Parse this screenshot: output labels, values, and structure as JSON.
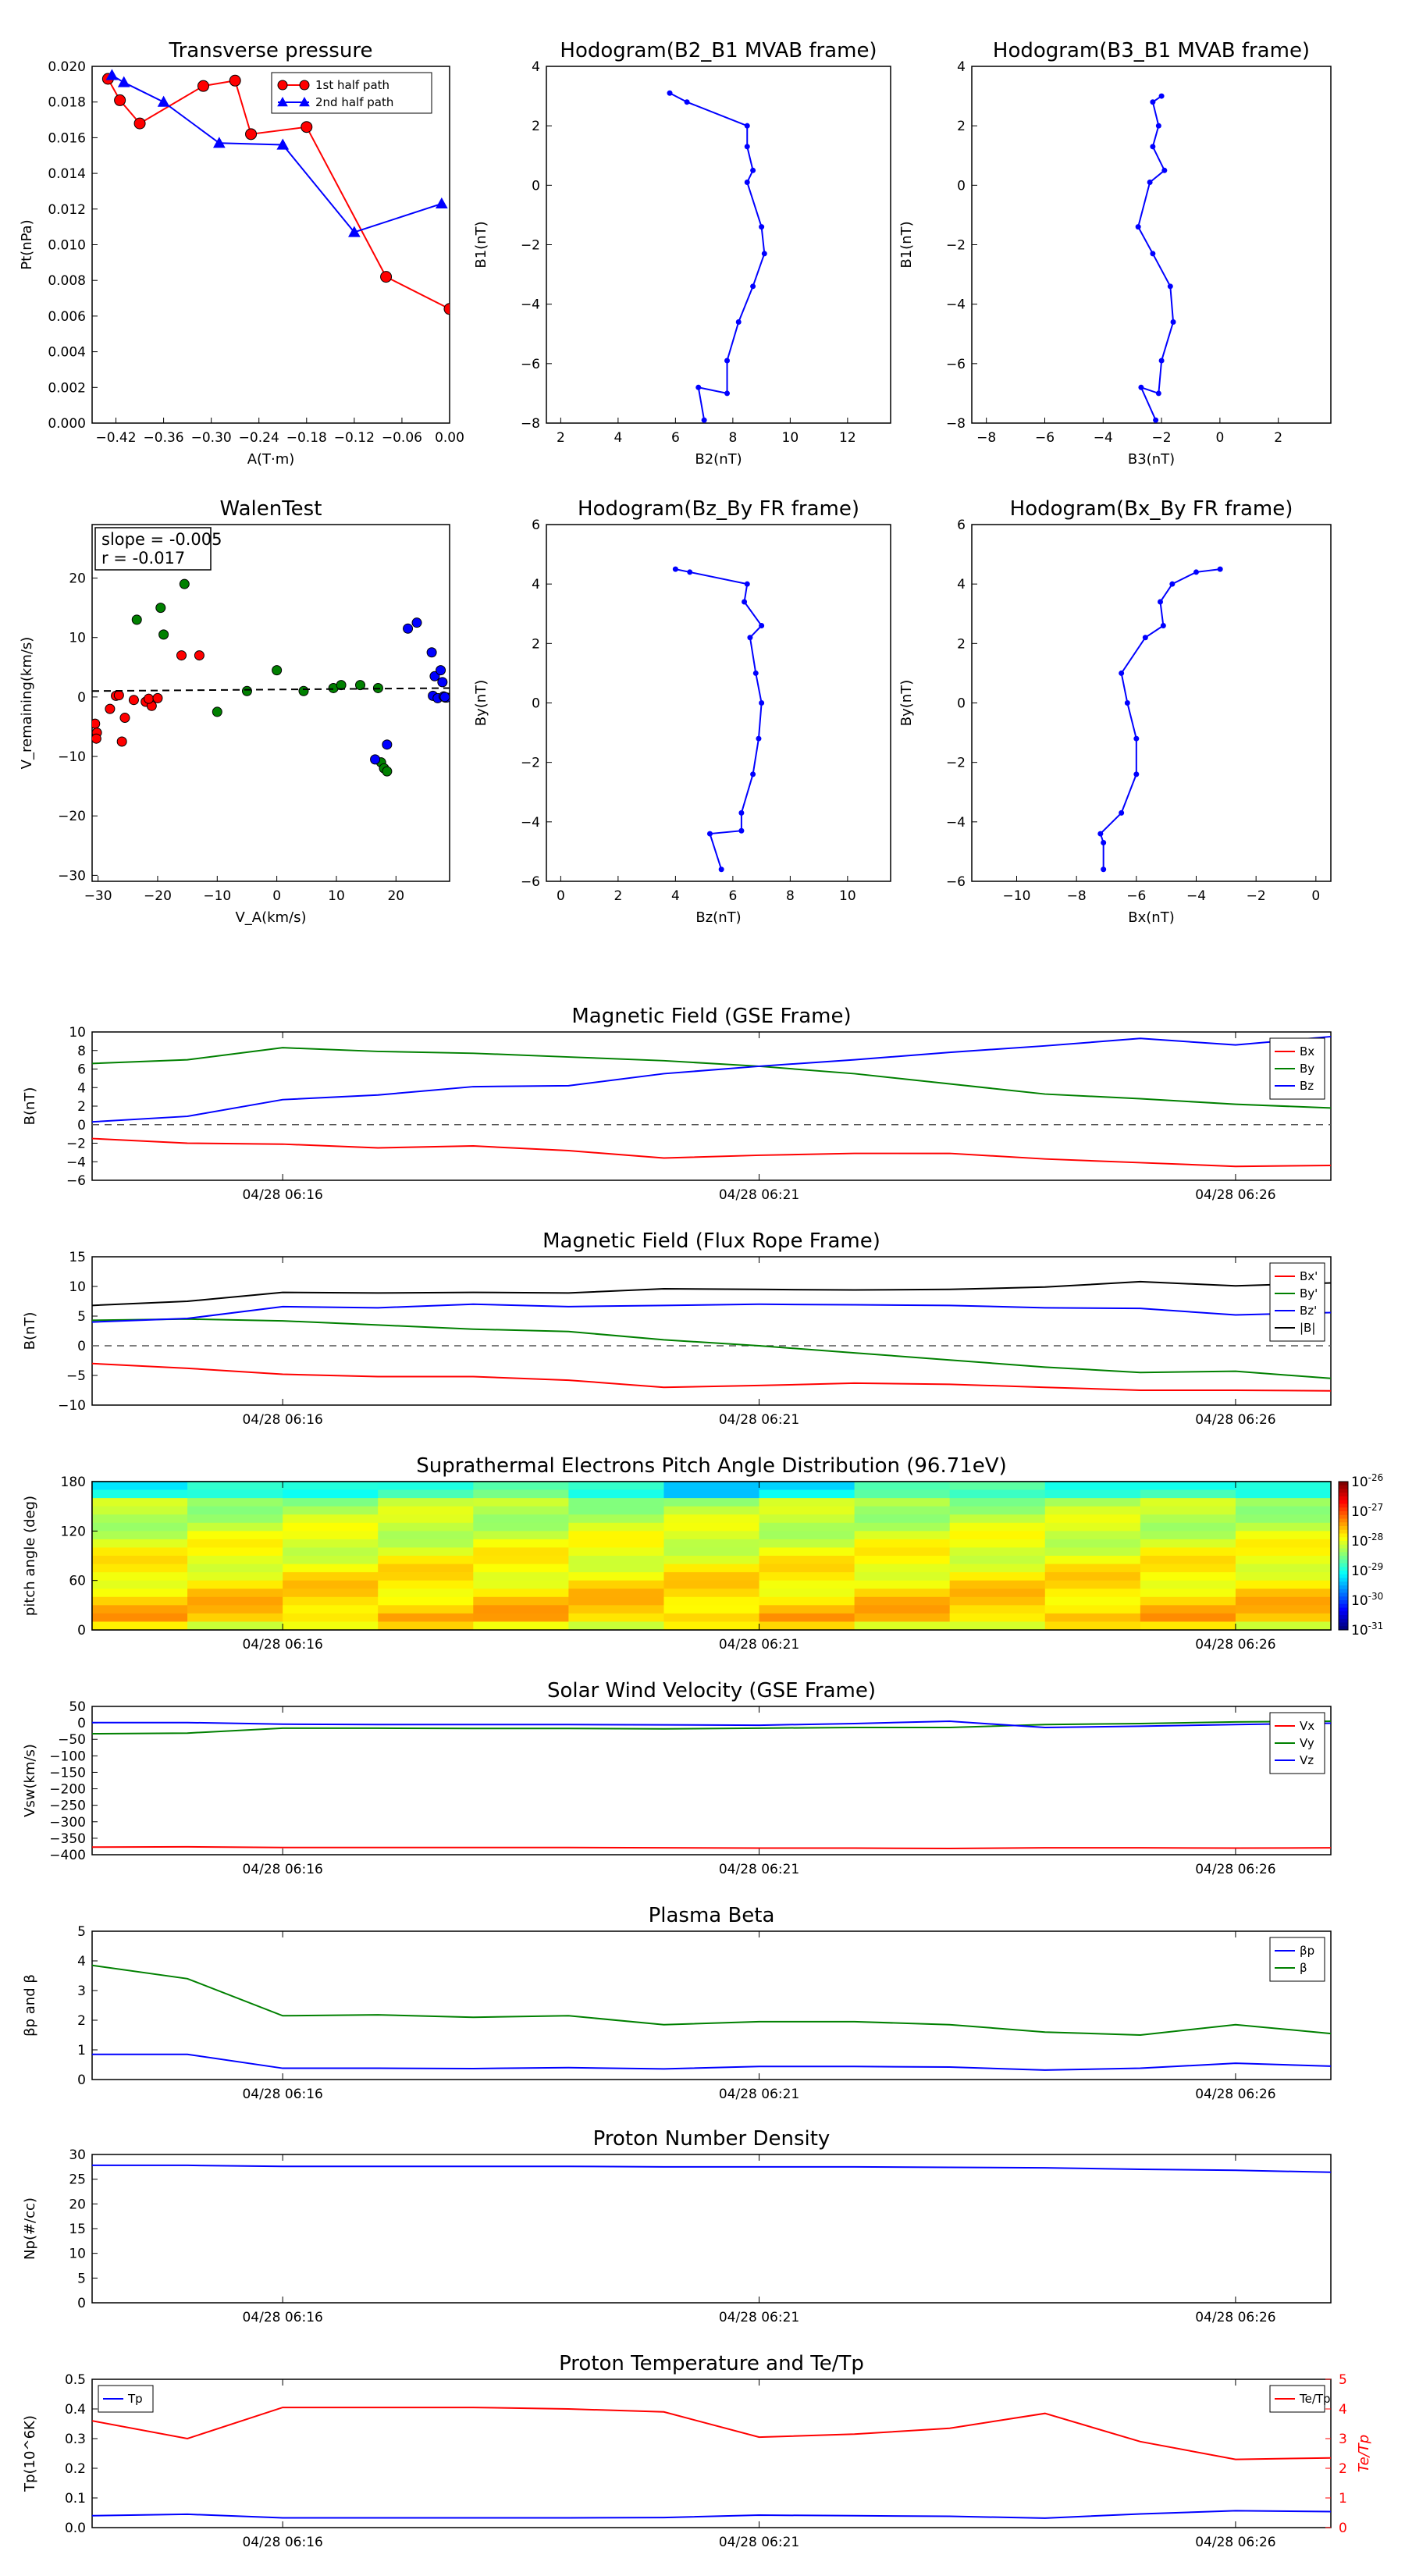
{
  "colors": {
    "red": "#ff0000",
    "green": "#008000",
    "blue": "#0000ff",
    "black": "#000000",
    "gray": "#555555"
  },
  "chart_data": [
    {
      "id": "tp",
      "type": "line",
      "title": "Transverse pressure",
      "xlabel": "A(T·m)",
      "ylabel": "Pt(nPa)",
      "xlim": [
        -0.45,
        0.0
      ],
      "ylim": [
        0,
        0.02
      ],
      "xticks": [
        -0.42,
        -0.36,
        -0.3,
        -0.24,
        -0.18,
        -0.12,
        -0.06,
        0.0
      ],
      "xtick_labels": [
        "−0.42",
        "−0.36",
        "−0.30",
        "−0.24",
        "−0.18",
        "−0.12",
        "−0.06",
        "0.00"
      ],
      "yticks": [
        0,
        0.002,
        0.004,
        0.006,
        0.008,
        0.01,
        0.012,
        0.014,
        0.016,
        0.018,
        0.02
      ],
      "ytick_labels": [
        "0.000",
        "0.002",
        "0.004",
        "0.006",
        "0.008",
        "0.010",
        "0.012",
        "0.014",
        "0.016",
        "0.018",
        "0.020"
      ],
      "legend": "top-center",
      "series": [
        {
          "name": "1st half path",
          "color": "#ff0000",
          "marker": "circle",
          "x": [
            -0.43,
            -0.415,
            -0.39,
            -0.31,
            -0.27,
            -0.25,
            -0.18,
            -0.08,
            0.0
          ],
          "y": [
            0.0193,
            0.0181,
            0.0168,
            0.0189,
            0.0192,
            0.0162,
            0.0166,
            0.0082,
            0.0064
          ]
        },
        {
          "name": "2nd half path",
          "color": "#0000ff",
          "marker": "triangle",
          "x": [
            -0.425,
            -0.41,
            -0.36,
            -0.29,
            -0.21,
            -0.12,
            -0.01
          ],
          "y": [
            0.0195,
            0.0191,
            0.018,
            0.0157,
            0.0156,
            0.0107,
            0.0123
          ]
        }
      ]
    },
    {
      "id": "hodo1",
      "type": "line",
      "title": "Hodogram(B2_B1 MVAB frame)",
      "xlabel": "B2(nT)",
      "ylabel": "B1(nT)",
      "xlim": [
        1.5,
        13.5
      ],
      "ylim": [
        -8,
        4
      ],
      "xticks": [
        2,
        4,
        6,
        8,
        10,
        12
      ],
      "xtick_labels": [
        "2",
        "4",
        "6",
        "8",
        "10",
        "12"
      ],
      "yticks": [
        -8,
        -6,
        -4,
        -2,
        0,
        2,
        4
      ],
      "ytick_labels": [
        "−8",
        "−6",
        "−4",
        "−2",
        "0",
        "2",
        "4"
      ],
      "series": [
        {
          "name": "",
          "color": "#0000ff",
          "marker": "dot",
          "x": [
            5.8,
            6.4,
            8.5,
            8.5,
            8.7,
            8.5,
            9.0,
            9.1,
            8.7,
            8.2,
            7.8,
            7.8,
            6.8,
            7.0
          ],
          "y": [
            3.1,
            2.8,
            2.0,
            1.3,
            0.5,
            0.1,
            -1.4,
            -2.3,
            -3.4,
            -4.6,
            -5.9,
            -7.0,
            -6.8,
            -7.9
          ]
        }
      ]
    },
    {
      "id": "hodo2",
      "type": "line",
      "title": "Hodogram(B3_B1 MVAB frame)",
      "xlabel": "B3(nT)",
      "ylabel": "B1(nT)",
      "xlim": [
        -8.5,
        3.8
      ],
      "ylim": [
        -8,
        4
      ],
      "xticks": [
        -8,
        -6,
        -4,
        -2,
        0,
        2
      ],
      "xtick_labels": [
        "−8",
        "−6",
        "−4",
        "−2",
        "0",
        "2"
      ],
      "yticks": [
        -8,
        -6,
        -4,
        -2,
        0,
        2,
        4
      ],
      "ytick_labels": [
        "−8",
        "−6",
        "−4",
        "−2",
        "0",
        "2",
        "4"
      ],
      "series": [
        {
          "name": "",
          "color": "#0000ff",
          "marker": "dot",
          "x": [
            -2.0,
            -2.3,
            -2.1,
            -2.3,
            -1.9,
            -2.4,
            -2.8,
            -2.3,
            -1.7,
            -1.6,
            -2.0,
            -2.1,
            -2.7,
            -2.2
          ],
          "y": [
            3.0,
            2.8,
            2.0,
            1.3,
            0.5,
            0.1,
            -1.4,
            -2.3,
            -3.4,
            -4.6,
            -5.9,
            -7.0,
            -6.8,
            -7.9
          ]
        }
      ]
    },
    {
      "id": "walen",
      "type": "scatter",
      "title": "WalenTest",
      "xlabel": "V_A(km/s)",
      "ylabel": "V_remaining(km/s)",
      "xlim": [
        -31,
        29
      ],
      "ylim": [
        -31,
        29
      ],
      "xticks": [
        -30,
        -20,
        -10,
        0,
        10,
        20
      ],
      "xtick_labels": [
        "−30",
        "−20",
        "−10",
        "0",
        "10",
        "20"
      ],
      "yticks": [
        -30,
        -20,
        -10,
        0,
        10,
        20
      ],
      "ytick_labels": [
        "−30",
        "−20",
        "−10",
        "0",
        "10",
        "20"
      ],
      "annotation": [
        "slope = -0.005",
        "r = -0.017"
      ],
      "fit_line": [
        [
          -31,
          1.0
        ],
        [
          29,
          1.5
        ]
      ],
      "series": [
        {
          "name": "",
          "color": "#ff0000",
          "x": [
            -30.5,
            -30.2,
            -30.3,
            -28,
            -27,
            -26.5,
            -25.5,
            -26,
            -24,
            -22,
            -21,
            -21.5,
            -20,
            -16,
            -13
          ],
          "y": [
            -4.5,
            -6,
            -7,
            -2,
            0.2,
            0.3,
            -3.5,
            -7.5,
            -0.5,
            -0.8,
            -1.5,
            -0.3,
            -0.2,
            7,
            7
          ]
        },
        {
          "name": "",
          "color": "#008000",
          "x": [
            -23.5,
            -19.5,
            -19,
            -15.5,
            -10,
            -5,
            0,
            4.5,
            9.5,
            10.8,
            14,
            17,
            17.5,
            18,
            18.5
          ],
          "y": [
            13,
            15,
            10.5,
            19,
            -2.5,
            1,
            4.5,
            1,
            1.5,
            2,
            2,
            1.5,
            -11,
            -12,
            -12.5
          ]
        },
        {
          "name": "",
          "color": "#0000ff",
          "x": [
            16.5,
            18.5,
            22,
            23.5,
            26,
            26.5,
            26.2,
            27,
            27.5,
            27.8,
            28,
            28.3,
            28.5,
            28.2
          ],
          "y": [
            -10.5,
            -8,
            11.5,
            12.5,
            7.5,
            3.5,
            0.2,
            -0.2,
            4.5,
            2.5,
            0.1,
            -0.1,
            -0.1,
            0
          ]
        }
      ]
    },
    {
      "id": "hodo3",
      "type": "line",
      "title": "Hodogram(Bz_By FR frame)",
      "xlabel": "Bz(nT)",
      "ylabel": "By(nT)",
      "xlim": [
        -0.5,
        11.5
      ],
      "ylim": [
        -6,
        6
      ],
      "xticks": [
        0,
        2,
        4,
        6,
        8,
        10
      ],
      "xtick_labels": [
        "0",
        "2",
        "4",
        "6",
        "8",
        "10"
      ],
      "yticks": [
        -6,
        -4,
        -2,
        0,
        2,
        4,
        6
      ],
      "ytick_labels": [
        "−6",
        "−4",
        "−2",
        "0",
        "2",
        "4",
        "6"
      ],
      "series": [
        {
          "name": "",
          "color": "#0000ff",
          "marker": "dot",
          "x": [
            4.0,
            4.5,
            6.5,
            6.4,
            7.0,
            6.6,
            6.8,
            7.0,
            6.9,
            6.7,
            6.3,
            6.3,
            5.2,
            5.6
          ],
          "y": [
            4.5,
            4.4,
            4.0,
            3.4,
            2.6,
            2.2,
            1.0,
            0.0,
            -1.2,
            -2.4,
            -3.7,
            -4.3,
            -4.4,
            -5.6
          ]
        }
      ]
    },
    {
      "id": "hodo4",
      "type": "line",
      "title": "Hodogram(Bx_By FR frame)",
      "xlabel": "Bx(nT)",
      "ylabel": "By(nT)",
      "xlim": [
        -11.5,
        0.5
      ],
      "ylim": [
        -6,
        6
      ],
      "xticks": [
        -10,
        -8,
        -6,
        -4,
        -2,
        0
      ],
      "xtick_labels": [
        "−10",
        "−8",
        "−6",
        "−4",
        "−2",
        "0"
      ],
      "yticks": [
        -6,
        -4,
        -2,
        0,
        2,
        4,
        6
      ],
      "ytick_labels": [
        "−6",
        "−4",
        "−2",
        "0",
        "2",
        "4",
        "6"
      ],
      "series": [
        {
          "name": "",
          "color": "#0000ff",
          "marker": "dot",
          "x": [
            -3.2,
            -4.0,
            -4.8,
            -5.2,
            -5.1,
            -5.7,
            -6.5,
            -6.3,
            -6.0,
            -6.0,
            -6.5,
            -7.2,
            -7.1,
            -7.1
          ],
          "y": [
            4.5,
            4.4,
            4.0,
            3.4,
            2.6,
            2.2,
            1.0,
            0.0,
            -1.2,
            -2.4,
            -3.7,
            -4.4,
            -4.7,
            -5.6
          ]
        }
      ]
    },
    {
      "id": "bgse",
      "type": "line",
      "title": "Magnetic Field (GSE Frame)",
      "ylabel": "B(nT)",
      "ylim": [
        -6,
        10
      ],
      "yticks": [
        -6,
        -4,
        -2,
        0,
        2,
        4,
        6,
        8,
        10
      ],
      "ytick_labels": [
        "−6",
        "−4",
        "−2",
        "0",
        "2",
        "4",
        "6",
        "8",
        "10"
      ],
      "legend": "top-right",
      "zero_line": true,
      "series": [
        {
          "name": "Bx",
          "color": "#ff0000",
          "y": [
            -1.5,
            -2.0,
            -2.1,
            -2.5,
            -2.3,
            -2.8,
            -3.6,
            -3.3,
            -3.1,
            -3.1,
            -3.7,
            -4.1,
            -4.5,
            -4.4
          ]
        },
        {
          "name": "By",
          "color": "#008000",
          "y": [
            6.6,
            7.0,
            8.3,
            7.9,
            7.7,
            7.3,
            6.9,
            6.3,
            5.5,
            4.4,
            3.3,
            2.8,
            2.2,
            1.8
          ]
        },
        {
          "name": "Bz",
          "color": "#0000ff",
          "y": [
            0.3,
            0.9,
            2.7,
            3.2,
            4.1,
            4.2,
            5.5,
            6.3,
            7.0,
            7.8,
            8.5,
            9.3,
            8.6,
            9.5
          ]
        }
      ]
    },
    {
      "id": "bfr",
      "type": "line",
      "title": "Magnetic Field (Flux Rope Frame)",
      "ylabel": "B(nT)",
      "ylim": [
        -10,
        15
      ],
      "yticks": [
        -10,
        -5,
        0,
        5,
        10,
        15
      ],
      "ytick_labels": [
        "−10",
        "−5",
        "0",
        "5",
        "10",
        "15"
      ],
      "legend": "top-right",
      "zero_line": true,
      "series": [
        {
          "name": "Bx'",
          "color": "#ff0000",
          "y": [
            -3.0,
            -3.8,
            -4.8,
            -5.2,
            -5.2,
            -5.8,
            -7.0,
            -6.7,
            -6.3,
            -6.5,
            -7.0,
            -7.5,
            -7.5,
            -7.6
          ]
        },
        {
          "name": "By'",
          "color": "#008000",
          "y": [
            4.3,
            4.5,
            4.2,
            3.5,
            2.8,
            2.4,
            1.0,
            0.0,
            -1.2,
            -2.4,
            -3.6,
            -4.5,
            -4.3,
            -5.5
          ]
        },
        {
          "name": "Bz'",
          "color": "#0000ff",
          "y": [
            4.0,
            4.6,
            6.6,
            6.4,
            7.0,
            6.6,
            6.8,
            7.0,
            6.9,
            6.8,
            6.4,
            6.3,
            5.2,
            5.6
          ]
        },
        {
          "name": "|B|",
          "color": "#000000",
          "y": [
            6.8,
            7.5,
            9.0,
            8.9,
            9.0,
            8.9,
            9.6,
            9.5,
            9.4,
            9.5,
            9.9,
            10.8,
            10.1,
            10.6
          ]
        }
      ]
    },
    {
      "id": "pad",
      "type": "heatmap",
      "title": "Suprathermal Electrons Pitch Angle Distribution (96.71eV)",
      "ylabel": "pitch angle (deg)",
      "ylim": [
        0,
        180
      ],
      "yticks": [
        0,
        60,
        120,
        180
      ],
      "ytick_labels": [
        "0",
        "60",
        "120",
        "180"
      ],
      "colorbar_ticks": [
        "10^-26",
        "10^-27",
        "10^-28",
        "10^-29",
        "10^-30",
        "10^-31"
      ],
      "rows_note": "rows top (180deg) to bottom (0deg), values as log10 intensity level 0(low)..1(high)",
      "columns": 13
    },
    {
      "id": "vsw",
      "type": "line",
      "title": "Solar Wind Velocity (GSE Frame)",
      "ylabel": "Vsw(km/s)",
      "ylim": [
        -400,
        50
      ],
      "yticks": [
        -400,
        -350,
        -300,
        -250,
        -200,
        -150,
        -100,
        -50,
        0,
        50
      ],
      "ytick_labels": [
        "−400",
        "−350",
        "−300",
        "−250",
        "−200",
        "−150",
        "−100",
        "−50",
        "0",
        "50"
      ],
      "legend": "top-right",
      "series": [
        {
          "name": "Vx",
          "color": "#ff0000",
          "y": [
            -377,
            -376,
            -378,
            -378,
            -378,
            -378,
            -379,
            -380,
            -380,
            -381,
            -379,
            -379,
            -380,
            -379
          ]
        },
        {
          "name": "Vy",
          "color": "#008000",
          "y": [
            -33,
            -31,
            -16,
            -16,
            -17,
            -17,
            -18,
            -16,
            -14,
            -14,
            -5,
            -2,
            3,
            5
          ]
        },
        {
          "name": "Vz",
          "color": "#0000ff",
          "y": [
            1,
            1,
            -4,
            -5,
            -5,
            -5,
            -6,
            -7,
            -2,
            5,
            -14,
            -10,
            -5,
            -1
          ]
        }
      ]
    },
    {
      "id": "beta",
      "type": "line",
      "title": "Plasma Beta",
      "ylabel": "βp and β",
      "ylim": [
        0,
        5
      ],
      "yticks": [
        0,
        1,
        2,
        3,
        4,
        5
      ],
      "ytick_labels": [
        "0",
        "1",
        "2",
        "3",
        "4",
        "5"
      ],
      "legend": "top-right",
      "series": [
        {
          "name": "βp",
          "color": "#0000ff",
          "y": [
            0.85,
            0.85,
            0.38,
            0.38,
            0.37,
            0.4,
            0.36,
            0.44,
            0.44,
            0.42,
            0.32,
            0.38,
            0.55,
            0.45
          ]
        },
        {
          "name": "β",
          "color": "#008000",
          "y": [
            3.85,
            3.4,
            2.15,
            2.18,
            2.1,
            2.15,
            1.85,
            1.95,
            1.95,
            1.85,
            1.6,
            1.5,
            1.85,
            1.55
          ]
        }
      ]
    },
    {
      "id": "np",
      "type": "line",
      "title": "Proton Number Density",
      "ylabel": "Np(#/cc)",
      "ylim": [
        0,
        30
      ],
      "yticks": [
        0,
        5,
        10,
        15,
        20,
        25,
        30
      ],
      "ytick_labels": [
        "0",
        "5",
        "10",
        "15",
        "20",
        "25",
        "30"
      ],
      "series": [
        {
          "name": "",
          "color": "#0000ff",
          "y": [
            27.8,
            27.8,
            27.6,
            27.6,
            27.6,
            27.6,
            27.5,
            27.5,
            27.5,
            27.4,
            27.3,
            27.0,
            26.8,
            26.4
          ]
        }
      ]
    },
    {
      "id": "tp2",
      "type": "line",
      "title": "Proton Temperature and Te/Tp",
      "ylabel": "Tp(10^6K)",
      "ylim": [
        0,
        0.5
      ],
      "yticks": [
        0,
        0.1,
        0.2,
        0.3,
        0.4,
        0.5
      ],
      "ytick_labels": [
        "0.0",
        "0.1",
        "0.2",
        "0.3",
        "0.4",
        "0.5"
      ],
      "y2label": "Te/Tp",
      "y2lim": [
        0,
        5
      ],
      "y2ticks": [
        0,
        1,
        2,
        3,
        4,
        5
      ],
      "y2tick_labels": [
        "0",
        "1",
        "2",
        "3",
        "4",
        "5"
      ],
      "series": [
        {
          "name": "Tp",
          "color": "#0000ff",
          "axis": "left",
          "legend": "top-left",
          "y": [
            0.04,
            0.045,
            0.033,
            0.033,
            0.033,
            0.033,
            0.034,
            0.042,
            0.04,
            0.038,
            0.032,
            0.046,
            0.057,
            0.054
          ]
        },
        {
          "name": "Te/Tp",
          "color": "#ff0000",
          "axis": "right",
          "legend": "top-right",
          "y": [
            3.6,
            3.0,
            4.05,
            4.05,
            4.05,
            4.0,
            3.9,
            3.05,
            3.15,
            3.35,
            3.85,
            2.9,
            2.3,
            2.35
          ]
        }
      ]
    }
  ],
  "time_axis": {
    "labels": [
      "04/28 06:16",
      "04/28 06:21",
      "04/28 06:26"
    ],
    "label_positions": [
      2,
      7,
      12
    ],
    "n_points": 14
  }
}
